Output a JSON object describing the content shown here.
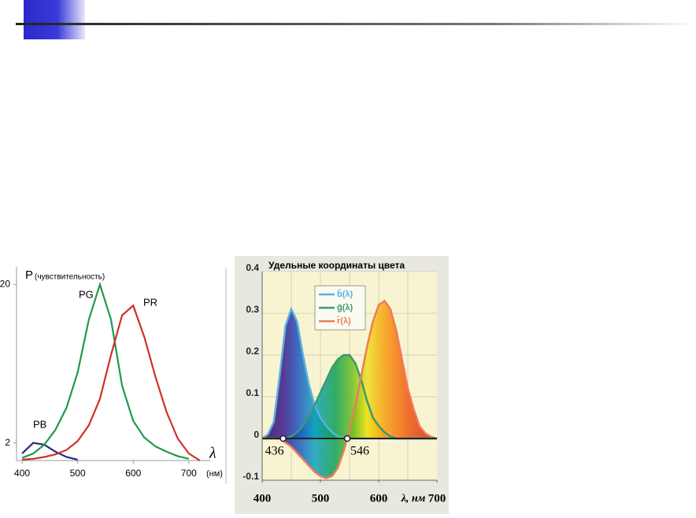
{
  "chart_data": [
    {
      "type": "line",
      "y_label": "P",
      "y_label_note": "(чувствительность)",
      "x_label": "λ",
      "x_unit": "(нм)",
      "x": [
        400,
        420,
        440,
        460,
        480,
        500,
        520,
        540,
        560,
        580,
        600,
        620,
        640,
        660,
        680,
        700,
        720
      ],
      "xlim": [
        390,
        730
      ],
      "xticks": [
        400,
        500,
        600,
        700
      ],
      "ylim": [
        0,
        22
      ],
      "yticks": [
        2,
        20
      ],
      "series": [
        {
          "name": "PB",
          "color": "#2a2a80",
          "values": [
            0.8,
            2,
            1.8,
            1,
            0.4,
            0.1,
            null,
            null,
            null,
            null,
            null,
            null,
            null,
            null,
            null,
            null,
            null
          ]
        },
        {
          "name": "PG",
          "color": "#1e9a4a",
          "values": [
            0.3,
            0.8,
            1.8,
            3.5,
            6,
            10,
            16,
            20,
            16,
            8.5,
            4.5,
            2.6,
            1.6,
            1,
            0.5,
            0.2,
            null
          ]
        },
        {
          "name": "PR",
          "color": "#d0302a",
          "values": [
            0.1,
            0.2,
            0.4,
            0.7,
            1.2,
            2.2,
            4,
            7,
            12,
            16.5,
            17.6,
            14,
            9.5,
            5.5,
            2.5,
            0.8,
            0
          ]
        }
      ]
    },
    {
      "type": "area",
      "title": "Удельные координаты цвета",
      "x_label": "λ, нм",
      "x": [
        400,
        410,
        420,
        430,
        440,
        450,
        460,
        470,
        480,
        490,
        500,
        510,
        520,
        530,
        540,
        550,
        560,
        570,
        580,
        590,
        600,
        610,
        620,
        630,
        640,
        650,
        660,
        670,
        680,
        690,
        700
      ],
      "xlim": [
        400,
        700
      ],
      "xticks": [
        400,
        500,
        600,
        700
      ],
      "xgrid": [
        450,
        500,
        550,
        600,
        650
      ],
      "ylim": [
        -0.1,
        0.4
      ],
      "yticks": [
        -0.1,
        0,
        0.1,
        0.2,
        0.3,
        0.4
      ],
      "markers": [
        436,
        546
      ],
      "series": [
        {
          "name": "b̄(λ)",
          "color": "#5ab0e0",
          "values": [
            0,
            0.01,
            0.04,
            0.15,
            0.27,
            0.31,
            0.28,
            0.2,
            0.13,
            0.08,
            0.05,
            0.03,
            0.015,
            0.005,
            0,
            0,
            0,
            0,
            0,
            0,
            0,
            0,
            0,
            0,
            0,
            0,
            0,
            0,
            0,
            0,
            0
          ]
        },
        {
          "name": "ḡ(λ)",
          "color": "#3a9a70",
          "values": [
            0,
            0,
            0,
            0,
            0,
            0.005,
            0.015,
            0.03,
            0.05,
            0.08,
            0.11,
            0.14,
            0.17,
            0.19,
            0.2,
            0.2,
            0.18,
            0.14,
            0.09,
            0.05,
            0.03,
            0.015,
            0.005,
            0,
            0,
            0,
            0,
            0,
            0,
            0,
            0
          ]
        },
        {
          "name": "r̄(λ)",
          "color": "#f07a5a",
          "values": [
            0,
            0,
            0,
            -0.001,
            -0.01,
            -0.02,
            -0.035,
            -0.05,
            -0.065,
            -0.08,
            -0.09,
            -0.095,
            -0.09,
            -0.07,
            -0.03,
            0.02,
            0.08,
            0.15,
            0.22,
            0.28,
            0.32,
            0.33,
            0.31,
            0.26,
            0.19,
            0.12,
            0.07,
            0.03,
            0.012,
            0.004,
            0
          ]
        }
      ]
    }
  ]
}
